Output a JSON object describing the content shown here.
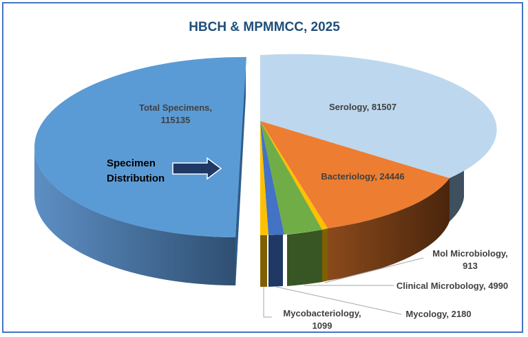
{
  "chart_data": {
    "type": "pie",
    "title": "HBCH & MPMMCC, 2025",
    "subtitle": "",
    "annotation": [
      "Specimen",
      "Distribution"
    ],
    "slices": [
      {
        "name": "Total  Specimens,",
        "value": 115135,
        "value_text": "115135",
        "label_text": "",
        "color": "#5b9bd5"
      },
      {
        "name": "Serology",
        "value": 81507,
        "value_text": "",
        "label_text": "Serology, 81507",
        "color": "#bdd7ee"
      },
      {
        "name": "Bacteriology",
        "value": 24446,
        "value_text": "",
        "label_text": "Bacteriology, 24446",
        "color": "#ed7d31"
      },
      {
        "name": "Mol Microbiology,",
        "value": 913,
        "value_text": "913",
        "label_text": "",
        "color": "#ffc000"
      },
      {
        "name": "Clinical Microbology",
        "value": 4990,
        "value_text": "",
        "label_text": "Clinical Microbology, 4990",
        "color": "#70ad47"
      },
      {
        "name": "Mycology",
        "value": 2180,
        "value_text": "",
        "label_text": "Mycology, 2180",
        "color": "#4472c4"
      },
      {
        "name": "Mycobacteriology,",
        "value": 1099,
        "value_text": "1099",
        "label_text": "",
        "color": "#ffc000"
      }
    ]
  },
  "colors": {
    "title": "#1f4e79",
    "border": "#4472c4",
    "arrow": "#1f3864",
    "label_text": "#404040"
  }
}
